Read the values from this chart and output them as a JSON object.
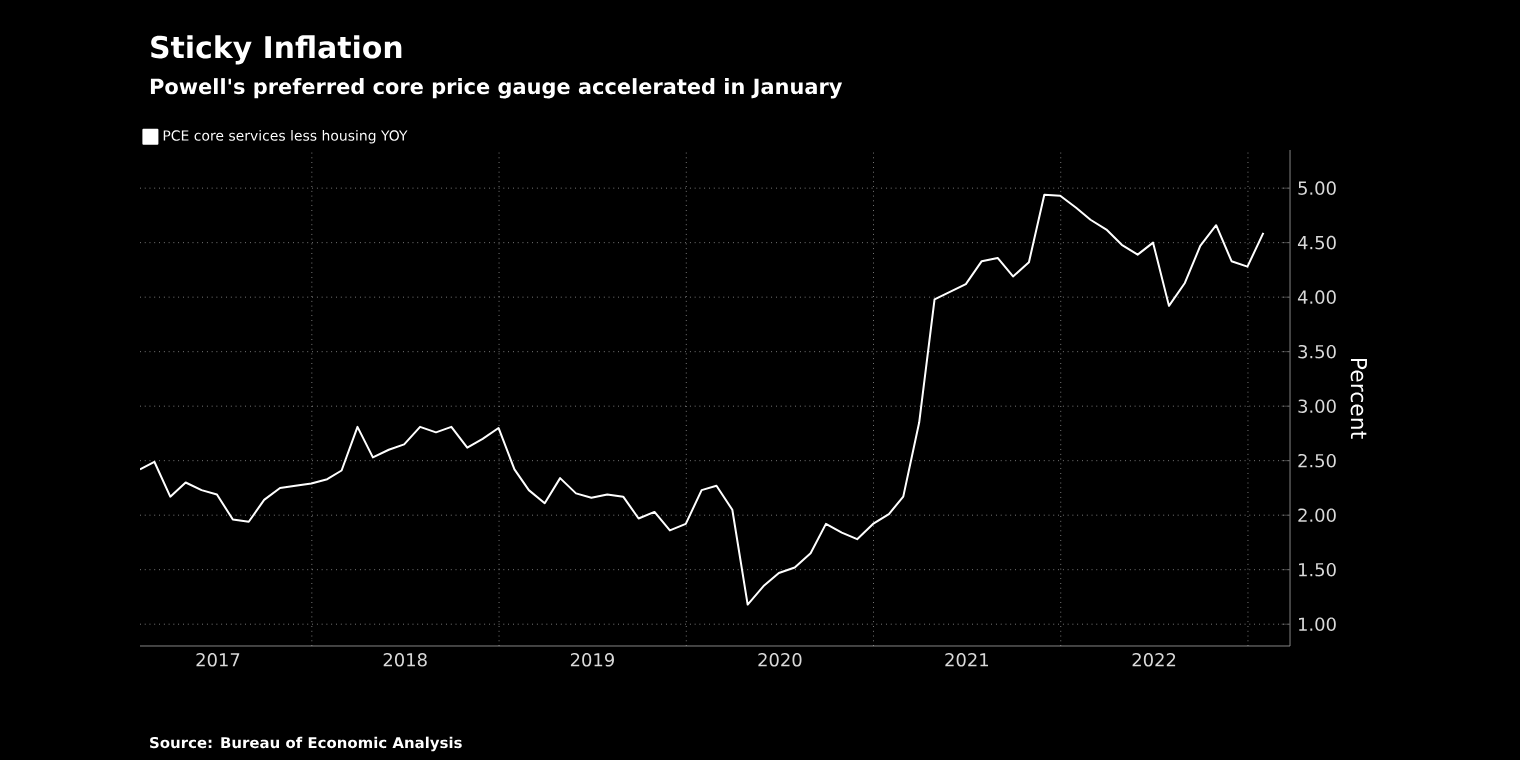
{
  "chart_data": {
    "type": "line",
    "title": "Sticky Inflation",
    "subtitle": "Powell's preferred core price gauge accelerated in January",
    "ylabel": "Percent",
    "annotations": [
      "Source: Bureau of Economic Analysis"
    ],
    "x": [
      "2017-01-31",
      "2017-02-28",
      "2017-03-31",
      "2017-04-30",
      "2017-05-31",
      "2017-06-30",
      "2017-07-31",
      "2017-08-31",
      "2017-09-30",
      "2017-10-31",
      "2017-11-30",
      "2017-12-31",
      "2018-01-31",
      "2018-02-28",
      "2018-03-31",
      "2018-04-30",
      "2018-05-31",
      "2018-06-30",
      "2018-07-31",
      "2018-08-31",
      "2018-09-30",
      "2018-10-31",
      "2018-11-30",
      "2018-12-31",
      "2019-01-31",
      "2019-02-28",
      "2019-03-31",
      "2019-04-30",
      "2019-05-31",
      "2019-06-30",
      "2019-07-31",
      "2019-08-31",
      "2019-09-30",
      "2019-10-31",
      "2019-11-30",
      "2019-12-31",
      "2020-01-31",
      "2020-02-29",
      "2020-03-31",
      "2020-04-30",
      "2020-05-31",
      "2020-06-30",
      "2020-07-31",
      "2020-08-31",
      "2020-09-30",
      "2020-10-31",
      "2020-11-30",
      "2020-12-31",
      "2021-01-31",
      "2021-02-28",
      "2021-03-31",
      "2021-04-30",
      "2021-05-31",
      "2021-06-30",
      "2021-07-31",
      "2021-08-31",
      "2021-09-30",
      "2021-10-31",
      "2021-11-30",
      "2021-12-31",
      "2022-01-31",
      "2022-02-28",
      "2022-03-31",
      "2022-04-30",
      "2022-05-31",
      "2022-06-30",
      "2022-07-31",
      "2022-08-31",
      "2022-09-30",
      "2022-10-31",
      "2022-11-30",
      "2022-12-31",
      "2023-01-31"
    ],
    "series": [
      {
        "name": "PCE core services less housing YOY",
        "color": "#ffffff",
        "values": [
          2.42,
          2.49,
          2.17,
          2.3,
          2.23,
          2.19,
          1.96,
          1.94,
          2.14,
          2.25,
          2.27,
          2.29,
          2.33,
          2.41,
          2.81,
          2.53,
          2.6,
          2.65,
          2.81,
          2.76,
          2.81,
          2.62,
          2.7,
          2.8,
          2.42,
          2.23,
          2.11,
          2.34,
          2.2,
          2.16,
          2.19,
          2.17,
          1.97,
          2.03,
          1.86,
          1.92,
          2.23,
          2.27,
          2.05,
          1.18,
          1.35,
          1.47,
          1.52,
          1.65,
          1.92,
          1.84,
          1.78,
          1.92,
          2.01,
          2.17,
          2.85,
          3.98,
          4.05,
          4.12,
          4.33,
          4.36,
          4.19,
          4.32,
          4.94,
          4.93,
          4.82,
          4.71,
          4.62,
          4.48,
          4.39,
          4.5,
          3.92,
          4.13,
          4.47,
          4.66,
          4.33,
          4.28,
          4.59
        ]
      }
    ],
    "xlim": [
      "2017-01-31",
      "2023-03-24"
    ],
    "xticks": [
      {
        "value": "2017-07-02",
        "label": "2017"
      },
      {
        "value": "2018-01-01",
        "label": null
      },
      {
        "value": "2018-07-02",
        "label": "2018"
      },
      {
        "value": "2019-01-01",
        "label": null
      },
      {
        "value": "2019-07-02",
        "label": "2019"
      },
      {
        "value": "2020-01-01",
        "label": null
      },
      {
        "value": "2020-07-02",
        "label": "2020"
      },
      {
        "value": "2021-01-01",
        "label": null
      },
      {
        "value": "2021-07-02",
        "label": "2021"
      },
      {
        "value": "2022-01-01",
        "label": null
      },
      {
        "value": "2022-07-02",
        "label": "2022"
      },
      {
        "value": "2023-01-01",
        "label": null
      }
    ],
    "ylim": [
      0.8,
      5.35
    ],
    "yticks": [
      {
        "value": 1,
        "label": "1.00"
      },
      {
        "value": 1.5,
        "label": "1.50"
      },
      {
        "value": 2,
        "label": "2.00"
      },
      {
        "value": 2.5,
        "label": "2.50"
      },
      {
        "value": 3,
        "label": "3.00"
      },
      {
        "value": 3.5,
        "label": "3.50"
      },
      {
        "value": 4,
        "label": "4.00"
      },
      {
        "value": 4.5,
        "label": "4.50"
      },
      {
        "value": 5,
        "label": "5.00"
      }
    ],
    "grid": true,
    "legend": "top left",
    "marker": "none",
    "line_style": "solid"
  }
}
